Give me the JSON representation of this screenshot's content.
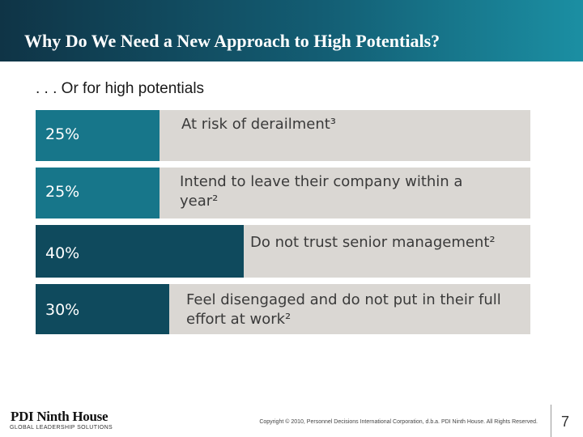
{
  "slide": {
    "title": "Why Do We Need a New Approach to High Potentials?",
    "subtitle": ". . . Or for high potentials",
    "stats": [
      {
        "percent": "25%",
        "value": 25,
        "text": "At risk of derailment³",
        "color": "#17768a"
      },
      {
        "percent": "25%",
        "value": 25,
        "text": "Intend to leave their company within a year²",
        "color": "#17768a"
      },
      {
        "percent": "40%",
        "value": 40,
        "text": "Do not trust senior management²",
        "color": "#0f4a5d"
      },
      {
        "percent": "30%",
        "value": 30,
        "text": "Feel disengaged and do not put in their full effort at work²",
        "color": "#0f4a5d"
      }
    ]
  },
  "footer": {
    "logo_main": "PDI Ninth House",
    "logo_sub": "GLOBAL LEADERSHIP SOLUTIONS",
    "copyright": "Copyright © 2010, Personnel Decisions International Corporation, d.b.a. PDI Ninth House. All Rights Reserved.",
    "page_number": "7"
  },
  "colors": {
    "header_dark": "#0f3446",
    "header_light": "#1b8fa3",
    "bar_background": "#dad7d3",
    "bar_teal": "#17768a",
    "bar_dark_teal": "#0f4a5d"
  }
}
